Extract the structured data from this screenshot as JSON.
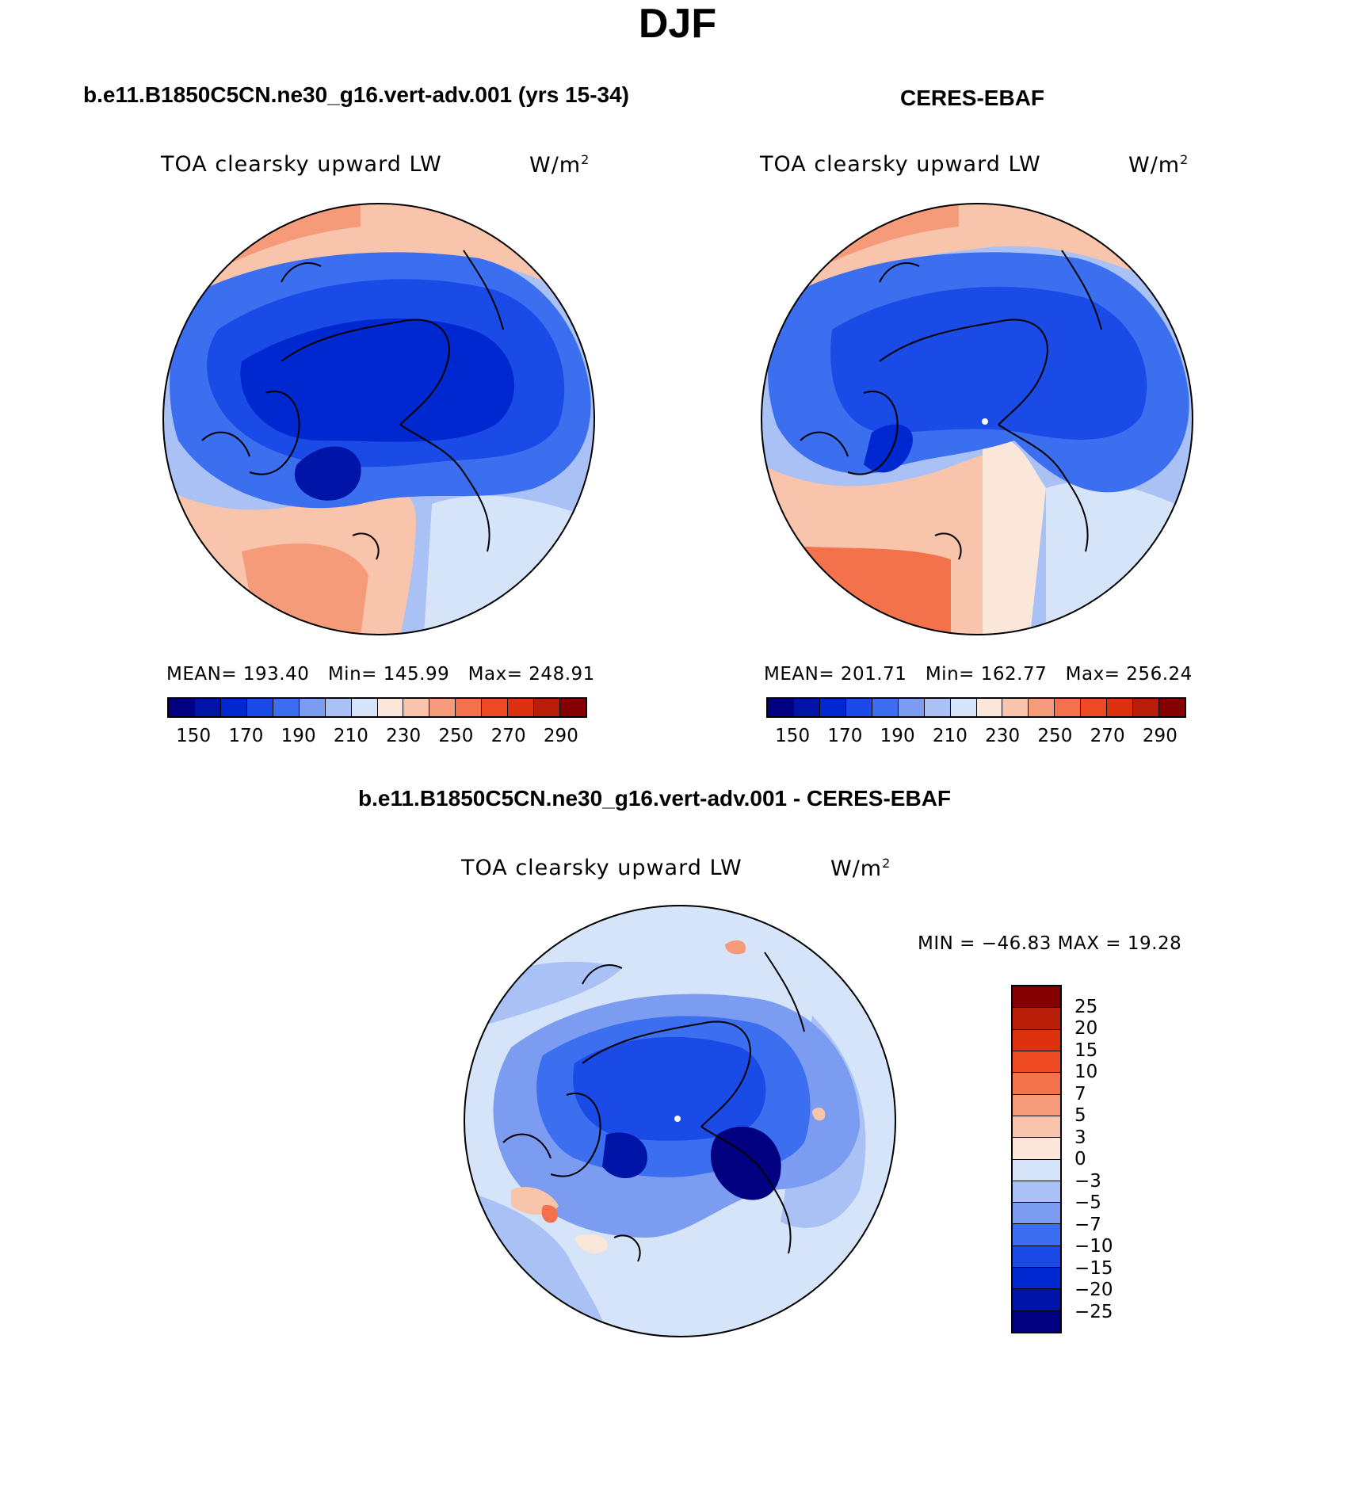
{
  "title": "DJF",
  "panels": [
    {
      "id": "model",
      "heading": "b.e11.B1850C5CN.ne30_g16.vert-adv.001 (yrs 15-34)",
      "variable": "TOA clearsky upward LW",
      "units_base": "W/m",
      "units_exp": "2",
      "mean_label": "MEAN=",
      "mean": "193.40",
      "min_label": "Min=",
      "min": "145.99",
      "max_label": "Max=",
      "max": "248.91"
    },
    {
      "id": "obs",
      "heading": "CERES-EBAF",
      "variable": "TOA clearsky upward LW",
      "units_base": "W/m",
      "units_exp": "2",
      "mean_label": "MEAN=",
      "mean": "201.71",
      "min_label": "Min=",
      "min": "162.77",
      "max_label": "Max=",
      "max": "256.24"
    },
    {
      "id": "diff",
      "heading": "b.e11.B1850C5CN.ne30_g16.vert-adv.001 - CERES-EBAF",
      "variable": "TOA clearsky upward LW",
      "units_base": "W/m",
      "units_exp": "2",
      "minmax_label": "MIN = −46.83 MAX =   19.28"
    }
  ],
  "abs_colorbar": {
    "colors": [
      "#000080",
      "#0014a8",
      "#0028d0",
      "#1a4be6",
      "#3c6ef0",
      "#7b9cf0",
      "#a9c1f5",
      "#d6e4fa",
      "#fbe6da",
      "#f8c4ac",
      "#f59b7a",
      "#f3714b",
      "#ee4a24",
      "#dc3210",
      "#b81e08",
      "#850000"
    ],
    "ticks": [
      "150",
      "170",
      "190",
      "210",
      "230",
      "250",
      "270",
      "290"
    ]
  },
  "diff_colorbar": {
    "colors": [
      "#850000",
      "#b81e08",
      "#dc3210",
      "#ee4a24",
      "#f3714b",
      "#f59b7a",
      "#f8c4ac",
      "#fbe6da",
      "#d6e4fa",
      "#a9c1f5",
      "#7b9cf0",
      "#3c6ef0",
      "#1a4be6",
      "#0028d0",
      "#0014a8",
      "#000080"
    ],
    "ticks": [
      "25",
      "20",
      "15",
      "10",
      "7",
      "5",
      "3",
      "0",
      "−3",
      "−5",
      "−7",
      "−10",
      "−15",
      "−20",
      "−25"
    ]
  }
}
